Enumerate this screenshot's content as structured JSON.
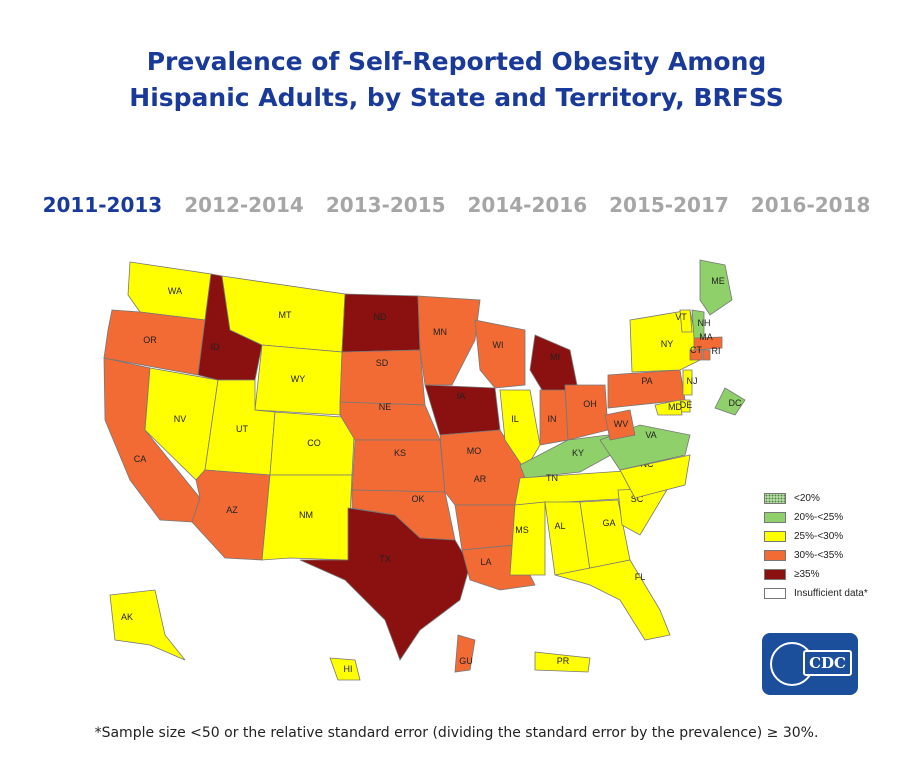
{
  "title": {
    "line1": "Prevalence of Self-Reported Obesity Among",
    "line2": "Hispanic Adults, by State and Territory, BRFSS"
  },
  "years": [
    "2011-2013",
    "2012-2014",
    "2013-2015",
    "2014-2016",
    "2015-2017",
    "2016-2018"
  ],
  "active_year": "2011-2013",
  "legend": [
    {
      "label": "<20%",
      "color": "#cfe8c0",
      "pattern": "dotted"
    },
    {
      "label": "20%-<25%",
      "color": "#8fd06a"
    },
    {
      "label": "25%-<30%",
      "color": "#ffff00"
    },
    {
      "label": "30%-<35%",
      "color": "#f26b35"
    },
    {
      "label": "≥35%",
      "color": "#8b1010"
    },
    {
      "label": "Insufficient data*",
      "color": "#ffffff"
    }
  ],
  "states": [
    {
      "abbr": "WA",
      "category": "25%-<30%"
    },
    {
      "abbr": "OR",
      "category": "30%-<35%"
    },
    {
      "abbr": "CA",
      "category": "30%-<35%"
    },
    {
      "abbr": "NV",
      "category": "25%-<30%"
    },
    {
      "abbr": "ID",
      "category": "≥35%"
    },
    {
      "abbr": "MT",
      "category": "25%-<30%"
    },
    {
      "abbr": "WY",
      "category": "25%-<30%"
    },
    {
      "abbr": "UT",
      "category": "25%-<30%"
    },
    {
      "abbr": "CO",
      "category": "25%-<30%"
    },
    {
      "abbr": "AZ",
      "category": "30%-<35%"
    },
    {
      "abbr": "NM",
      "category": "25%-<30%"
    },
    {
      "abbr": "ND",
      "category": "≥35%"
    },
    {
      "abbr": "SD",
      "category": "30%-<35%"
    },
    {
      "abbr": "NE",
      "category": "30%-<35%"
    },
    {
      "abbr": "KS",
      "category": "30%-<35%"
    },
    {
      "abbr": "OK",
      "category": "30%-<35%"
    },
    {
      "abbr": "TX",
      "category": "≥35%"
    },
    {
      "abbr": "MN",
      "category": "30%-<35%"
    },
    {
      "abbr": "IA",
      "category": "≥35%"
    },
    {
      "abbr": "MO",
      "category": "30%-<35%"
    },
    {
      "abbr": "AR",
      "category": "30%-<35%"
    },
    {
      "abbr": "LA",
      "category": "30%-<35%"
    },
    {
      "abbr": "WI",
      "category": "30%-<35%"
    },
    {
      "abbr": "IL",
      "category": "25%-<30%"
    },
    {
      "abbr": "MI",
      "category": "≥35%"
    },
    {
      "abbr": "IN",
      "category": "30%-<35%"
    },
    {
      "abbr": "OH",
      "category": "30%-<35%"
    },
    {
      "abbr": "KY",
      "category": "20%-<25%"
    },
    {
      "abbr": "TN",
      "category": "25%-<30%"
    },
    {
      "abbr": "MS",
      "category": "25%-<30%"
    },
    {
      "abbr": "AL",
      "category": "25%-<30%"
    },
    {
      "abbr": "GA",
      "category": "25%-<30%"
    },
    {
      "abbr": "FL",
      "category": "25%-<30%"
    },
    {
      "abbr": "SC",
      "category": "25%-<30%"
    },
    {
      "abbr": "NC",
      "category": "25%-<30%"
    },
    {
      "abbr": "VA",
      "category": "20%-<25%"
    },
    {
      "abbr": "WV",
      "category": "30%-<35%"
    },
    {
      "abbr": "PA",
      "category": "30%-<35%"
    },
    {
      "abbr": "NY",
      "category": "25%-<30%"
    },
    {
      "abbr": "VT",
      "category": "25%-<30%"
    },
    {
      "abbr": "NH",
      "category": "20%-<25%"
    },
    {
      "abbr": "ME",
      "category": "20%-<25%"
    },
    {
      "abbr": "MA",
      "category": "30%-<35%"
    },
    {
      "abbr": "CT",
      "category": "30%-<35%"
    },
    {
      "abbr": "RI",
      "category": "30%-<35%"
    },
    {
      "abbr": "NJ",
      "category": "25%-<30%"
    },
    {
      "abbr": "DE",
      "category": "25%-<30%"
    },
    {
      "abbr": "MD",
      "category": "25%-<30%"
    },
    {
      "abbr": "DC",
      "category": "20%-<25%"
    },
    {
      "abbr": "AK",
      "category": "25%-<30%"
    },
    {
      "abbr": "HI",
      "category": "25%-<30%"
    },
    {
      "abbr": "GU",
      "category": "30%-<35%"
    },
    {
      "abbr": "PR",
      "category": "25%-<30%"
    }
  ],
  "logo_text": "CDC",
  "footnote": "*Sample size <50 or the relative standard error (dividing the standard error by the prevalence) ≥ 30%."
}
